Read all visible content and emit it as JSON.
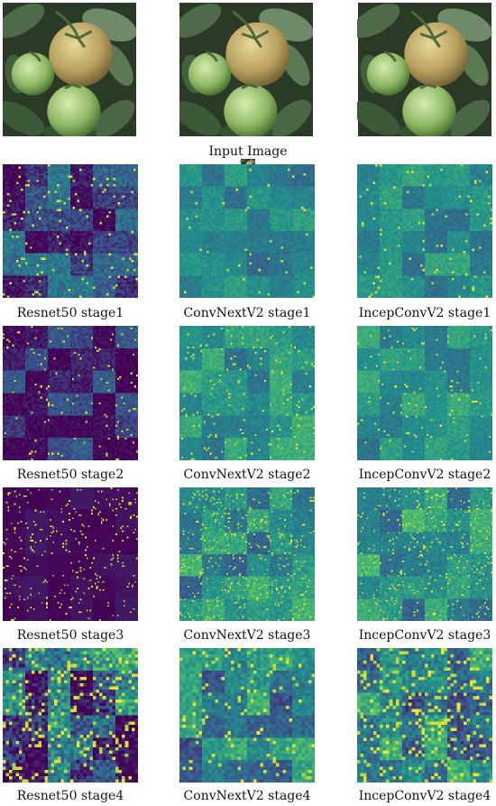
{
  "figure": {
    "input_caption": "Input Image",
    "columns": [
      "Resnet50",
      "ConvNextV2",
      "IncepConvV2"
    ],
    "rows": [
      {
        "stage": 1,
        "captions": [
          "Resnet50 stage1",
          "ConvNextV2 stage1",
          "IncepConvV2 stage1"
        ]
      },
      {
        "stage": 2,
        "captions": [
          "Resnet50 stage2",
          "ConvNextV2 stage2",
          "IncepConvV2 stage2"
        ]
      },
      {
        "stage": 3,
        "captions": [
          "Resnet50 stage3",
          "ConvNextV2 stage3",
          "IncepConvV2 stage3"
        ]
      },
      {
        "stage": 4,
        "captions": [
          "Resnet50 stage4",
          "ConvNextV2 stage4",
          "IncepConvV2 stage4"
        ]
      }
    ],
    "colormap": [
      "#440154",
      "#3b528b",
      "#21918c",
      "#5ec962",
      "#fde725"
    ]
  }
}
